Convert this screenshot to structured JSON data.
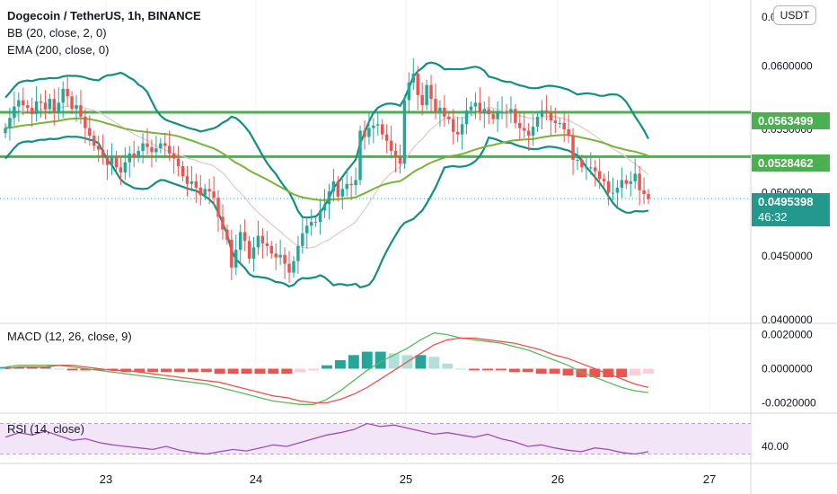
{
  "header": {
    "title": "Dogecoin / TetherUS, 1h, BINANCE",
    "indicators": [
      "BB (20, close, 2, 0)",
      "EMA (200, close, 0)"
    ]
  },
  "currency_button": "USDT",
  "price_tags": {
    "line_high": "0.0563499",
    "line_low": "0.0528462",
    "last_price": "0.0495398",
    "countdown": "46:32"
  },
  "colors": {
    "up": "#26a69a",
    "down": "#ef5350",
    "bollinger": "#138e80",
    "bb_basis": "#e0c8c8",
    "ema": "#78b43c",
    "hline": "#4caf50",
    "macd_line": "#5cb85c",
    "signal_line": "#ef5350",
    "rsi_line": "#9c4fb4",
    "rsi_band": "#f3e5f8"
  },
  "chart_data": [
    {
      "type": "candlestick",
      "title": "Dogecoin / TetherUS, 1h, BINANCE",
      "x_tick_labels": [
        "23",
        "24",
        "25",
        "26",
        "27"
      ],
      "y_tick_labels": [
        "0.0600000",
        "0.0550000",
        "0.0500000",
        "0.0450000",
        "0.0400000"
      ],
      "y_top_partial_label": "0.0",
      "ylim": [
        0.0397,
        0.0652
      ],
      "horizontal_lines": [
        0.0563499,
        0.0528462
      ],
      "last_price": 0.0495398,
      "closes": [
        0.0551,
        0.0559,
        0.0568,
        0.0573,
        0.0569,
        0.0567,
        0.0562,
        0.0572,
        0.0571,
        0.0566,
        0.0574,
        0.0563,
        0.0571,
        0.0582,
        0.0576,
        0.0566,
        0.0569,
        0.056,
        0.0551,
        0.0545,
        0.0537,
        0.0534,
        0.0528,
        0.0522,
        0.0529,
        0.052,
        0.0516,
        0.0524,
        0.0531,
        0.0528,
        0.0533,
        0.0539,
        0.0536,
        0.0532,
        0.0535,
        0.0539,
        0.0537,
        0.0531,
        0.0527,
        0.0521,
        0.0513,
        0.0507,
        0.0509,
        0.0504,
        0.0498,
        0.0503,
        0.0501,
        0.0496,
        0.0481,
        0.0471,
        0.0463,
        0.0441,
        0.0455,
        0.0469,
        0.0462,
        0.0448,
        0.0457,
        0.0466,
        0.046,
        0.0458,
        0.0452,
        0.0449,
        0.0451,
        0.0444,
        0.0437,
        0.0446,
        0.0458,
        0.0468,
        0.0474,
        0.0477,
        0.0477,
        0.0486,
        0.0491,
        0.0501,
        0.0509,
        0.0497,
        0.0503,
        0.0507,
        0.0506,
        0.051,
        0.0549,
        0.0544,
        0.0551,
        0.0553,
        0.0554,
        0.0546,
        0.0541,
        0.0533,
        0.0528,
        0.0523,
        0.0573,
        0.0587,
        0.0594,
        0.0577,
        0.0569,
        0.0585,
        0.0574,
        0.0564,
        0.0567,
        0.056,
        0.0558,
        0.0548,
        0.0546,
        0.0554,
        0.0565,
        0.0568,
        0.0571,
        0.0563,
        0.0566,
        0.0562,
        0.0558,
        0.0564,
        0.0564,
        0.0563,
        0.0566,
        0.0555,
        0.0551,
        0.0549,
        0.0545,
        0.0552,
        0.056,
        0.0565,
        0.0563,
        0.0557,
        0.0555,
        0.0555,
        0.055,
        0.0545,
        0.0526,
        0.0526,
        0.052,
        0.052,
        0.052,
        0.0517,
        0.0511,
        0.0509,
        0.05,
        0.05,
        0.0504,
        0.051,
        0.0507,
        0.0509,
        0.0515,
        0.0502,
        0.0499,
        0.0495
      ]
    },
    {
      "type": "bar",
      "title": "MACD (12, 26, close, 9)",
      "y_tick_labels": [
        "0.0020000",
        "0.0000000",
        "-0.0020000"
      ],
      "ylim": [
        -0.0024,
        0.0024
      ],
      "series": [
        {
          "name": "MACD",
          "values": [
            0.0001,
            0.0002,
            0.0002,
            0.0002,
            0.0002,
            0.0001,
            0.0,
            -0.0001,
            -0.0002,
            -0.0003,
            -0.0004,
            -0.0005,
            -0.0006,
            -0.0007,
            -0.0008,
            -0.0009,
            -0.0011,
            -0.0013,
            -0.0015,
            -0.0017,
            -0.0019,
            -0.002,
            -0.0021,
            -0.0021,
            -0.0018,
            -0.0013,
            -0.0007,
            -0.0001,
            0.0004,
            0.0008,
            0.0012,
            0.0017,
            0.0021,
            0.002,
            0.0018,
            0.0017,
            0.0016,
            0.0015,
            0.0013,
            0.0011,
            0.0008,
            0.0005,
            0.0002,
            -0.0002,
            -0.0005,
            -0.0008,
            -0.0011,
            -0.0013,
            -0.0014
          ]
        },
        {
          "name": "Signal",
          "values": [
            0.0,
            0.0001,
            0.0001,
            0.0001,
            0.0002,
            0.0002,
            0.0001,
            0.0,
            -0.0001,
            -0.0001,
            -0.0002,
            -0.0003,
            -0.0004,
            -0.0005,
            -0.0006,
            -0.0007,
            -0.0008,
            -0.001,
            -0.0012,
            -0.0014,
            -0.0016,
            -0.0017,
            -0.0019,
            -0.002,
            -0.002,
            -0.0018,
            -0.0015,
            -0.0011,
            -0.0006,
            -0.0001,
            0.0004,
            0.0009,
            0.0014,
            0.0017,
            0.0018,
            0.0018,
            0.0017,
            0.0016,
            0.0015,
            0.0013,
            0.0011,
            0.0008,
            0.0006,
            0.0003,
            0.0,
            -0.0003,
            -0.0006,
            -0.0009,
            -0.0011
          ]
        },
        {
          "name": "Histogram",
          "values": [
            0.0001,
            0.0001,
            0.0001,
            0.0001,
            0.0,
            -0.0001,
            -0.0001,
            -0.0001,
            -0.0001,
            -0.0002,
            -0.0002,
            -0.0002,
            -0.0002,
            -0.0002,
            -0.0002,
            -0.0002,
            -0.0003,
            -0.0003,
            -0.0003,
            -0.0003,
            -0.0003,
            -0.0003,
            -0.0002,
            -0.0001,
            0.0002,
            0.0005,
            0.0008,
            0.001,
            0.001,
            0.0009,
            0.0008,
            0.0008,
            0.0007,
            0.0003,
            0.0,
            -0.0001,
            -0.0001,
            -0.0001,
            -0.0002,
            -0.0002,
            -0.0003,
            -0.0003,
            -0.0004,
            -0.0005,
            -0.0005,
            -0.0005,
            -0.0005,
            -0.0004,
            -0.0003
          ]
        }
      ]
    },
    {
      "type": "line",
      "title": "RSI (14, close)",
      "y_tick_labels": [
        "40.00"
      ],
      "ylim": [
        20,
        80
      ],
      "band": [
        30,
        70
      ],
      "series": [
        {
          "name": "RSI",
          "values": [
            52,
            58,
            55,
            60,
            54,
            48,
            50,
            45,
            42,
            40,
            38,
            36,
            40,
            35,
            32,
            30,
            33,
            36,
            34,
            38,
            42,
            40,
            45,
            50,
            55,
            58,
            62,
            70,
            66,
            68,
            64,
            60,
            56,
            58,
            55,
            52,
            56,
            50,
            46,
            40,
            42,
            38,
            35,
            33,
            38,
            36,
            32,
            30,
            33
          ]
        }
      ]
    }
  ]
}
